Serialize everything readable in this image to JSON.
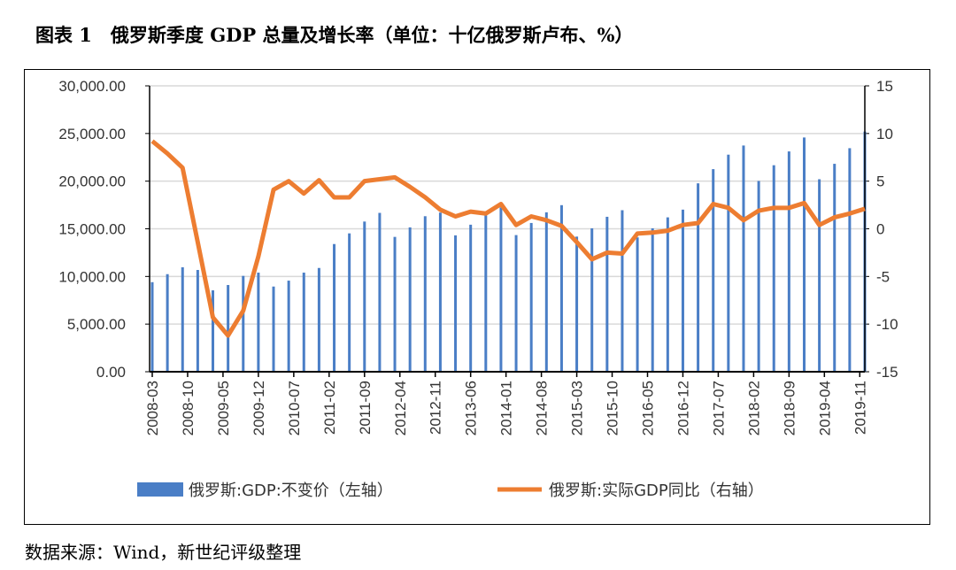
{
  "title": "图表 1　俄罗斯季度 GDP 总量及增长率（单位：十亿俄罗斯卢布、%）",
  "source": "数据来源：Wind，新世纪评级整理",
  "chart_data": {
    "type": "bar+line",
    "title": "",
    "x_tick_labels": [
      "2008-03",
      "2008-10",
      "2009-05",
      "2009-12",
      "2010-07",
      "2011-02",
      "2011-09",
      "2012-04",
      "2012-11",
      "2013-06",
      "2014-01",
      "2014-08",
      "2015-03",
      "2015-10",
      "2016-05",
      "2016-12",
      "2017-07",
      "2018-02",
      "2018-09",
      "2019-04",
      "2019-11"
    ],
    "x": [
      "2008-03",
      "2008-06",
      "2008-09",
      "2008-12",
      "2009-03",
      "2009-06",
      "2009-09",
      "2009-12",
      "2010-03",
      "2010-06",
      "2010-09",
      "2010-12",
      "2011-03",
      "2011-06",
      "2011-09",
      "2011-12",
      "2012-03",
      "2012-06",
      "2012-09",
      "2012-12",
      "2013-03",
      "2013-06",
      "2013-09",
      "2013-12",
      "2014-03",
      "2014-06",
      "2014-09",
      "2014-12",
      "2015-03",
      "2015-06",
      "2015-09",
      "2015-12",
      "2016-03",
      "2016-06",
      "2016-09",
      "2016-12",
      "2017-03",
      "2017-06",
      "2017-09",
      "2017-12",
      "2018-03",
      "2018-06",
      "2018-09",
      "2018-12",
      "2019-03",
      "2019-06",
      "2019-09",
      "2019-12"
    ],
    "left_axis": {
      "ylim": [
        0,
        30000
      ],
      "ticks": [
        "0.00",
        "5,000.00",
        "10,000.00",
        "15,000.00",
        "20,000.00",
        "25,000.00",
        "30,000.00"
      ]
    },
    "right_axis": {
      "ylim": [
        -15,
        15
      ],
      "ticks": [
        "-15",
        "-10",
        "-5",
        "0",
        "5",
        "10",
        "15"
      ]
    },
    "grid": true,
    "legend_position": "bottom",
    "series": [
      {
        "name": "俄罗斯:GDP:不变价（左轴）",
        "type": "bar",
        "axis": "left",
        "color": "#4A7EC6",
        "values": [
          9400,
          10240,
          10960,
          10680,
          8540,
          9100,
          10060,
          10400,
          8940,
          9560,
          10400,
          10890,
          13400,
          14520,
          15760,
          16670,
          14150,
          15150,
          16320,
          16700,
          14310,
          15430,
          16400,
          17250,
          14340,
          15610,
          16730,
          17480,
          14180,
          15050,
          16260,
          16950,
          14100,
          15050,
          16200,
          17010,
          19770,
          21260,
          22780,
          23740,
          20020,
          21670,
          23120,
          24580,
          20200,
          21820,
          23460,
          25200
        ]
      },
      {
        "name": "俄罗斯:实际GDP同比（右轴）",
        "type": "line",
        "axis": "right",
        "color": "#ED7D31",
        "values": [
          9.2,
          7.9,
          6.4,
          -1.4,
          -9.3,
          -11.2,
          -8.6,
          -2.9,
          4.1,
          5.0,
          3.7,
          5.1,
          3.3,
          3.3,
          5.0,
          5.2,
          5.4,
          4.4,
          3.3,
          2.0,
          1.3,
          1.8,
          1.6,
          2.6,
          0.4,
          1.3,
          0.9,
          0.3,
          -1.4,
          -3.2,
          -2.5,
          -2.6,
          -0.5,
          -0.4,
          -0.2,
          0.4,
          0.6,
          2.6,
          2.2,
          0.9,
          1.9,
          2.2,
          2.2,
          2.7,
          0.4,
          1.2,
          1.6,
          2.1
        ]
      }
    ]
  }
}
